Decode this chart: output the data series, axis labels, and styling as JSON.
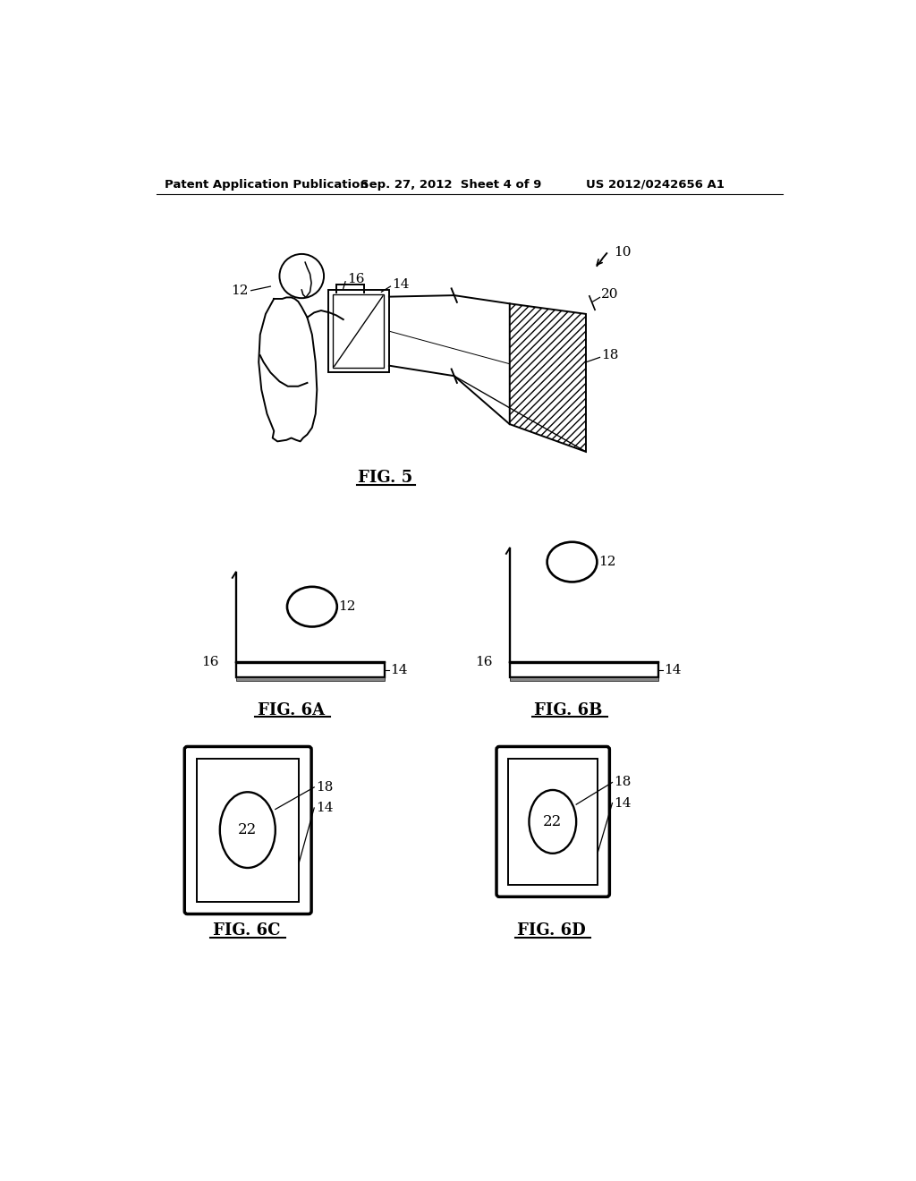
{
  "bg_color": "#ffffff",
  "header_left": "Patent Application Publication",
  "header_center": "Sep. 27, 2012  Sheet 4 of 9",
  "header_right": "US 2012/0242656 A1",
  "fig5_label": "FIG. 5",
  "fig6a_label": "FIG. 6A",
  "fig6b_label": "FIG. 6B",
  "fig6c_label": "FIG. 6C",
  "fig6d_label": "FIG. 6D",
  "lw": 1.4
}
